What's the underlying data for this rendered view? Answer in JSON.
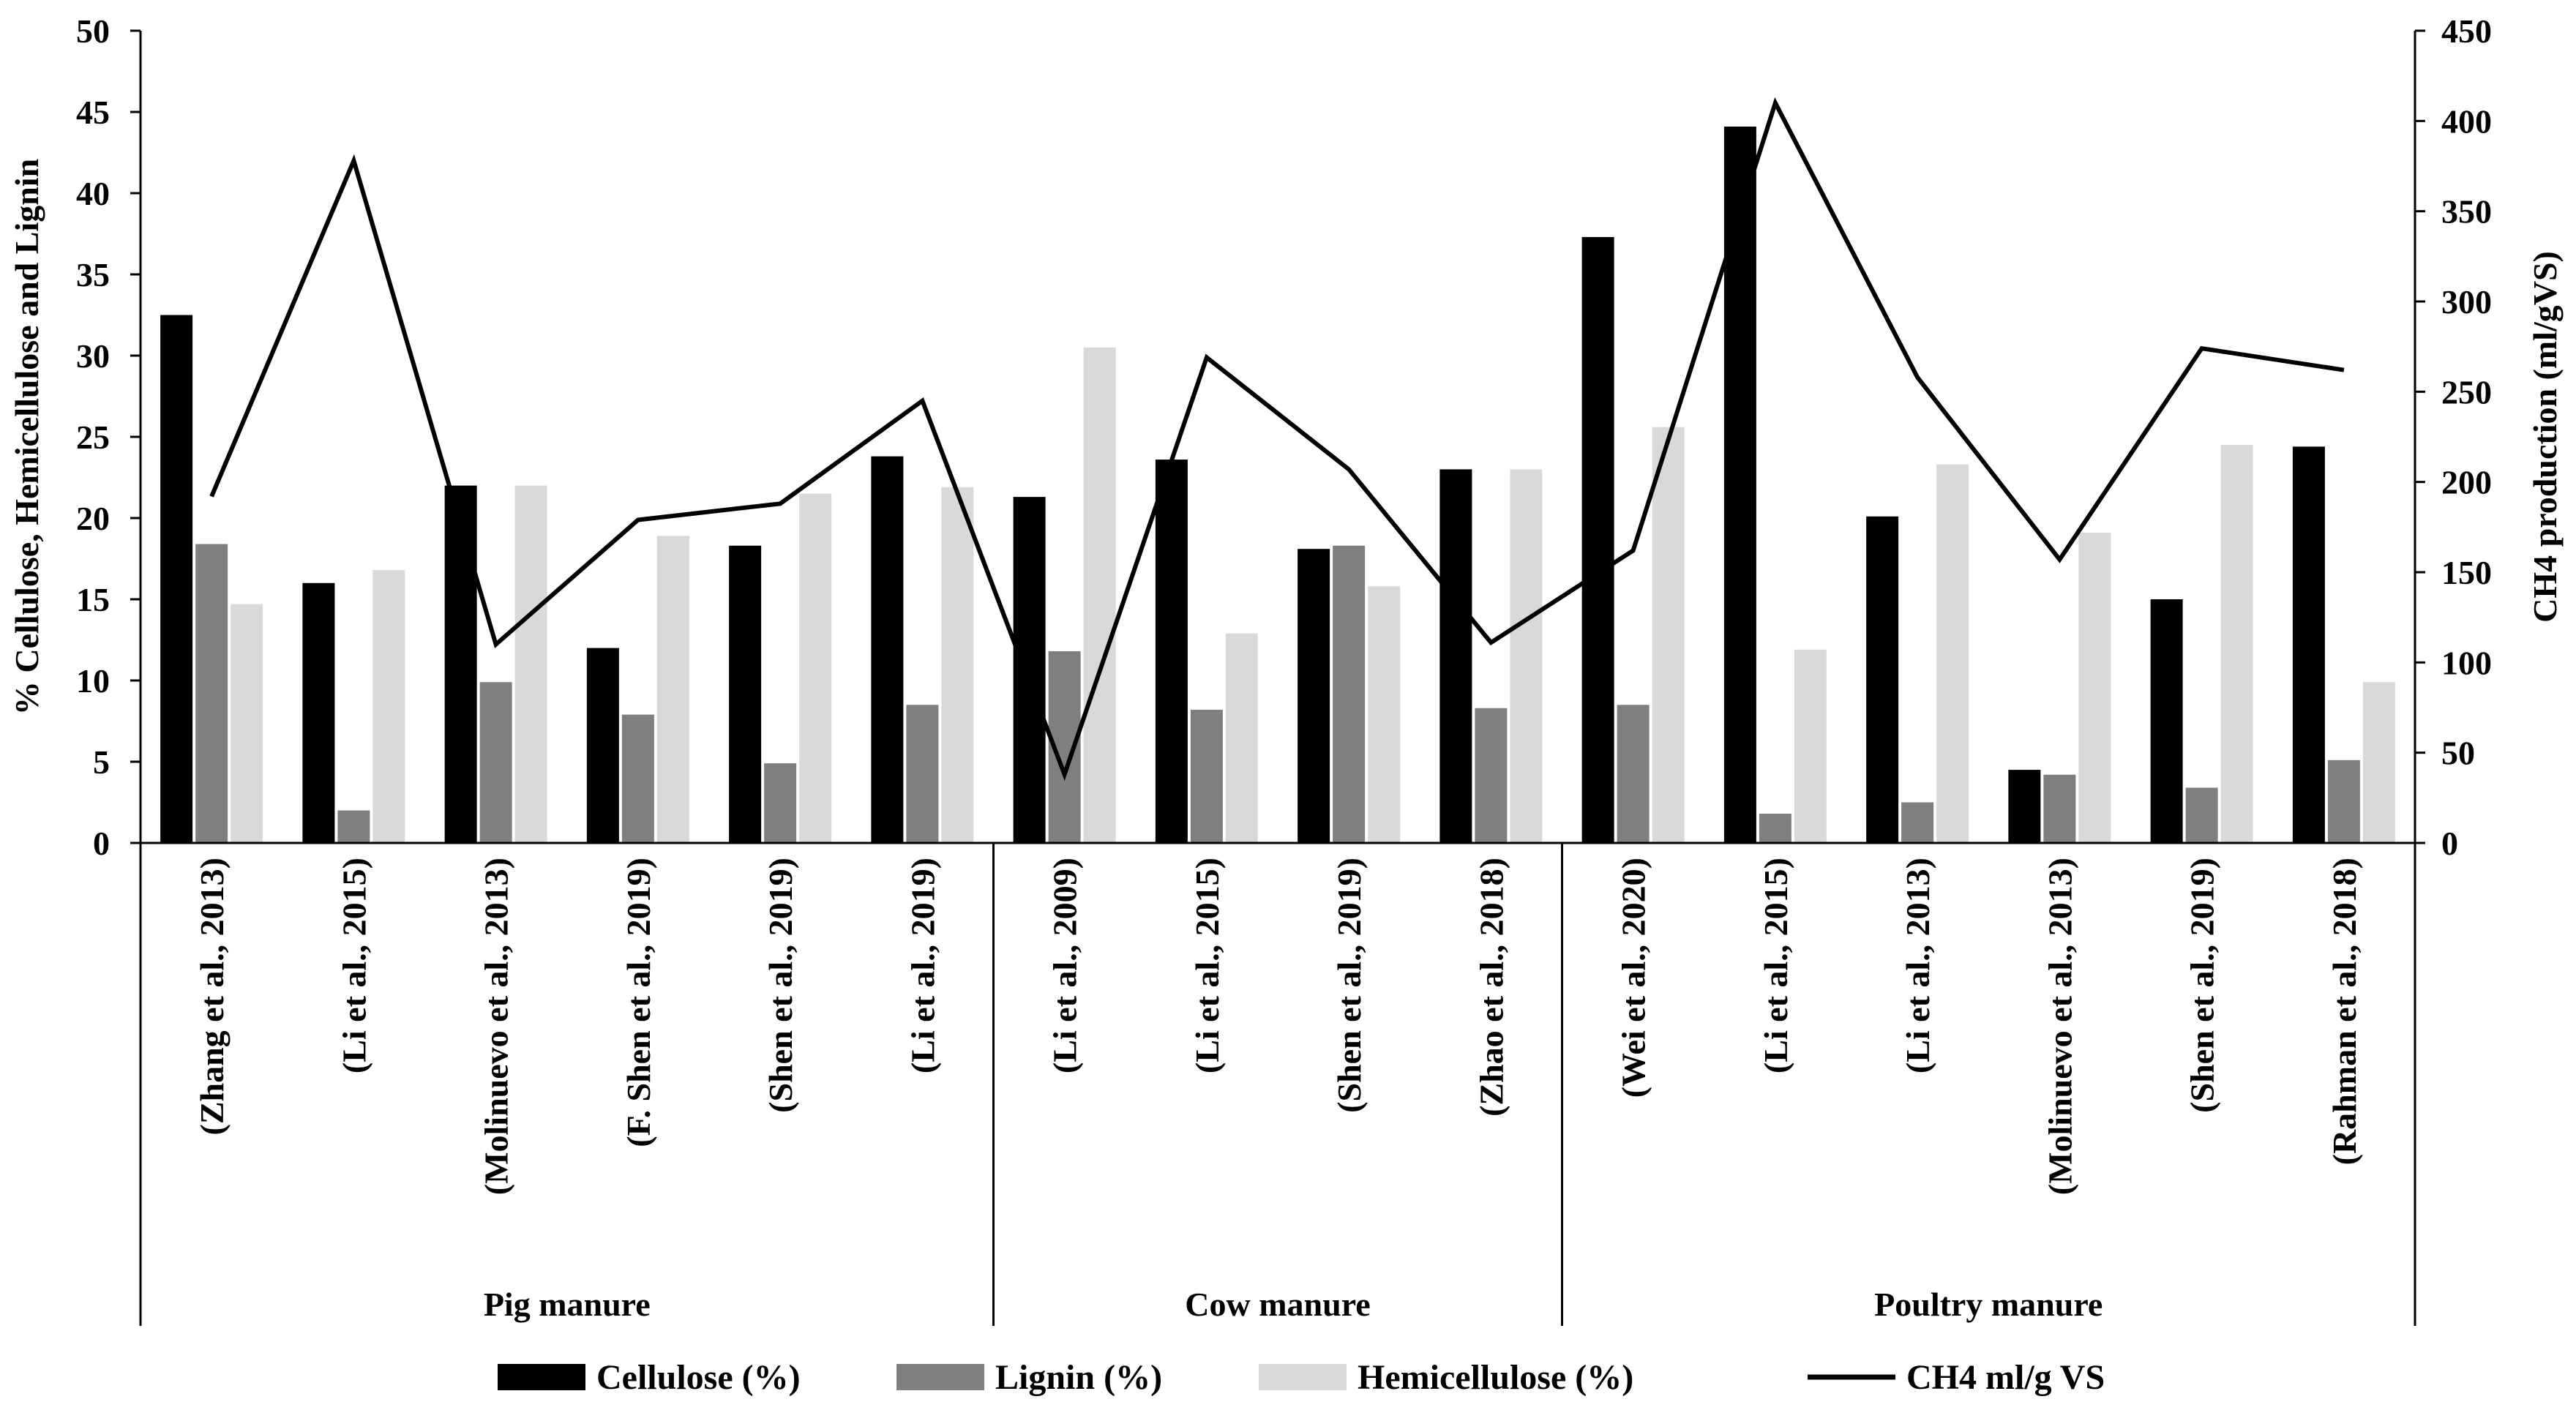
{
  "chart_data": {
    "type": "bar",
    "title": "",
    "ylabel_left": "% Cellulose, Hemicellulose and Lignin",
    "ylabel_right": "CH4 production (ml/gVS)",
    "ylim_left": [
      0,
      50
    ],
    "yticks_left": [
      0,
      5,
      10,
      15,
      20,
      25,
      30,
      35,
      40,
      45,
      50
    ],
    "ylim_right": [
      0,
      450
    ],
    "yticks_right": [
      0,
      50,
      100,
      150,
      200,
      250,
      300,
      350,
      400,
      450
    ],
    "groups": [
      {
        "name": "Pig manure",
        "count": 6
      },
      {
        "name": "Cow manure",
        "count": 4
      },
      {
        "name": "Poultry manure",
        "count": 6
      }
    ],
    "categories": [
      "(Zhang et al., 2013)",
      "(Li et al., 2015)",
      "(Molinuevo et al., 2013)",
      "(F. Shen et al., 2019)",
      "(Shen et al., 2019)",
      "(Li et al., 2019)",
      "(Li et al., 2009)",
      "(Li et al., 2015)",
      "(Shen et al., 2019)",
      "(Zhao et al., 2018)",
      "(Wei et al., 2020)",
      "(Li et al., 2015)",
      "(Li et al., 2013)",
      "(Molinuevo et al., 2013)",
      "(Shen et al., 2019)",
      "(Rahman et al., 2018)"
    ],
    "series": [
      {
        "name": "Cellulose (%)",
        "axis": "left",
        "kind": "bar",
        "color": "#000000",
        "values": [
          32.5,
          16,
          22,
          12,
          18.3,
          23.8,
          21.3,
          23.6,
          18.1,
          23,
          37.3,
          44.1,
          20.1,
          4.5,
          15,
          24.4
        ]
      },
      {
        "name": "Lignin (%)",
        "axis": "left",
        "kind": "bar",
        "color": "#7f7f7f",
        "values": [
          18.4,
          2,
          9.9,
          7.9,
          4.9,
          8.5,
          11.8,
          8.2,
          18.3,
          8.3,
          8.5,
          1.8,
          2.5,
          4.2,
          3.4,
          5.1
        ]
      },
      {
        "name": "Hemicellulose (%)",
        "axis": "left",
        "kind": "bar",
        "color": "#d9d9d9",
        "values": [
          14.7,
          16.8,
          22,
          18.9,
          21.5,
          21.9,
          30.5,
          12.9,
          15.8,
          23,
          25.6,
          11.9,
          23.3,
          19.1,
          24.5,
          9.9
        ]
      },
      {
        "name": "CH4 ml/g VS",
        "axis": "right",
        "kind": "line",
        "color": "#000000",
        "values": [
          192,
          378,
          110,
          179,
          188,
          245,
          38,
          269,
          207,
          111,
          162,
          410,
          258,
          157,
          274,
          262
        ]
      }
    ],
    "legend_position": "bottom",
    "grid": false
  }
}
